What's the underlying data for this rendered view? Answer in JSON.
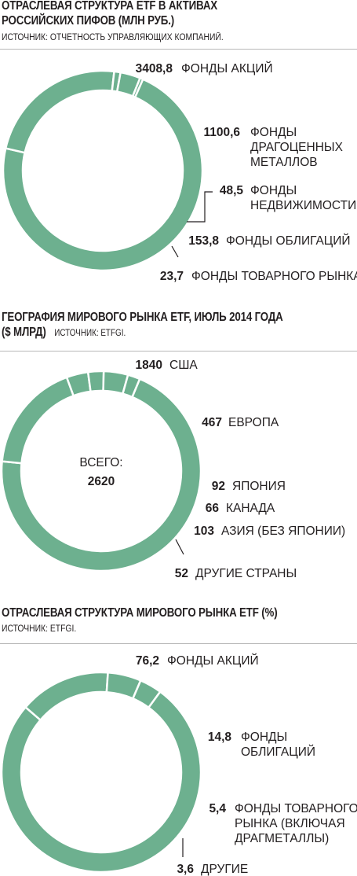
{
  "colors": {
    "ring": "#6db08f",
    "text": "#231f20",
    "rule": "#b8b8b8"
  },
  "chart1": {
    "title_line1": "ОТРАСЛЕВАЯ СТРУКТУРА ETF В АКТИВАХ",
    "title_line2": "РОССИЙСКИХ ПИФОВ (МЛН РУБ.)",
    "source": "ИСТОЧНИК: ОТЧЕТНОСТЬ УПРАВЛЯЮЩИХ КОМПАНИЙ."
  },
  "chart2": {
    "title_line1": "ГЕОГРАФИЯ МИРОВОГО РЫНКА ETF, ИЮЛЬ 2014 ГОДА",
    "title_line2": "($ МЛРД)",
    "source": "ИСТОЧНИК: ETFGI.",
    "center_label": "ВСЕГО:",
    "center_value": "2620"
  },
  "chart3": {
    "title": "ОТРАСЛЕВАЯ СТРУКТУРА МИРОВОГО РЫНКА ETF (%)",
    "source": "ИСТОЧНИК: ETFGI."
  },
  "chart_data": [
    {
      "type": "pie",
      "title": "ОТРАСЛЕВАЯ СТРУКТУРА ETF В АКТИВАХ РОССИЙСКИХ ПИФОВ (МЛН РУБ.)",
      "series": [
        {
          "label": "3408,8",
          "value": 3408.8,
          "name_lines": [
            "ФОНДЫ АКЦИЙ"
          ]
        },
        {
          "label": "1100,6",
          "value": 1100.6,
          "name_lines": [
            "ФОНДЫ",
            "ДРАГОЦЕННЫХ",
            "МЕТАЛЛОВ"
          ]
        },
        {
          "label": "48,5",
          "value": 48.5,
          "name_lines": [
            "ФОНДЫ",
            "НЕДВИЖИМОСТИ"
          ]
        },
        {
          "label": "153,8",
          "value": 153.8,
          "name_lines": [
            "ФОНДЫ ОБЛИГАЦИЙ"
          ]
        },
        {
          "label": "23,7",
          "value": 23.7,
          "name_lines": [
            "ФОНДЫ ТОВАРНОГО РЫНКА"
          ]
        }
      ]
    },
    {
      "type": "pie",
      "title": "ГЕОГРАФИЯ МИРОВОГО РЫНКА ETF, ИЮЛЬ 2014 ГОДА ($ МЛРД)",
      "series": [
        {
          "label": "1840",
          "value": 1840,
          "name_lines": [
            "США"
          ]
        },
        {
          "label": "467",
          "value": 467,
          "name_lines": [
            "ЕВРОПА"
          ]
        },
        {
          "label": "92",
          "value": 92,
          "name_lines": [
            "ЯПОНИЯ"
          ]
        },
        {
          "label": "66",
          "value": 66,
          "name_lines": [
            "КАНАДА"
          ]
        },
        {
          "label": "103",
          "value": 103,
          "name_lines": [
            "АЗИЯ (БЕЗ ЯПОНИИ)"
          ]
        },
        {
          "label": "52",
          "value": 52,
          "name_lines": [
            "ДРУГИЕ СТРАНЫ"
          ]
        }
      ]
    },
    {
      "type": "pie",
      "title": "ОТРАСЛЕВАЯ СТРУКТУРА МИРОВОГО РЫНКА ETF (%)",
      "series": [
        {
          "label": "76,2",
          "value": 76.2,
          "name_lines": [
            "ФОНДЫ АКЦИЙ"
          ]
        },
        {
          "label": "14,8",
          "value": 14.8,
          "name_lines": [
            "ФОНДЫ",
            "ОБЛИГАЦИЙ"
          ]
        },
        {
          "label": "5,4",
          "value": 5.4,
          "name_lines": [
            "ФОНДЫ ТОВАРНОГО",
            "РЫНКА (ВКЛЮЧАЯ",
            "ДРАГМЕТАЛЛЫ)"
          ]
        },
        {
          "label": "3,6",
          "value": 3.6,
          "name_lines": [
            "ДРУГИЕ"
          ]
        }
      ]
    }
  ]
}
